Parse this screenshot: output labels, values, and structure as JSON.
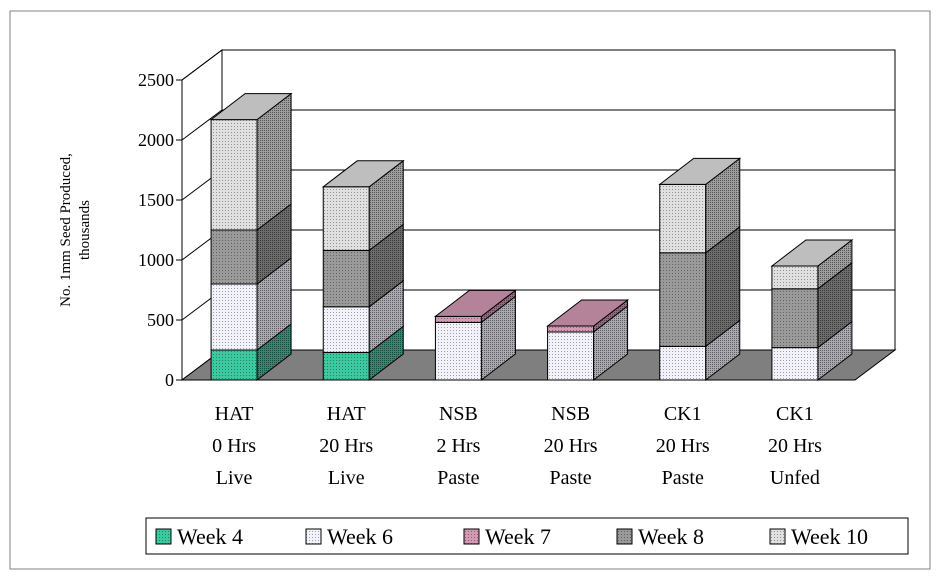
{
  "chart_data": {
    "type": "bar",
    "stacked": true,
    "three_d": true,
    "ylabel": "No. 1mm Seed Produced, thousands",
    "ylabel_lines": [
      "No. 1mm Seed Produced,",
      "thousands"
    ],
    "ylim": [
      0,
      2500
    ],
    "yticks": [
      0,
      500,
      1000,
      1500,
      2000,
      2500
    ],
    "ytick_labels": [
      "0",
      "500",
      "1000",
      "1500",
      "2000",
      "2500"
    ],
    "grid": true,
    "legend_position": "bottom",
    "categories": [
      "HAT 0 Hrs Live",
      "HAT 20 Hrs Live",
      "NSB 2 Hrs Paste",
      "NSB 20 Hrs Paste",
      "CK1 20 Hrs Paste",
      "CK1 20 Hrs Unfed"
    ],
    "category_lines": [
      [
        "HAT",
        "0 Hrs",
        "Live"
      ],
      [
        "HAT",
        "20 Hrs",
        "Live"
      ],
      [
        "NSB",
        "2 Hrs",
        "Paste"
      ],
      [
        "NSB",
        "20 Hrs",
        "Paste"
      ],
      [
        "CK1",
        "20 Hrs",
        "Paste"
      ],
      [
        "CK1",
        "20 Hrs",
        "Unfed"
      ]
    ],
    "series": [
      {
        "name": "Week 4",
        "color": "#3cc9a0",
        "values": [
          250,
          230,
          0,
          0,
          0,
          0
        ]
      },
      {
        "name": "Week 6",
        "color": "#f2f2fa",
        "values": [
          550,
          380,
          480,
          400,
          280,
          270
        ]
      },
      {
        "name": "Week 7",
        "color": "#d49ab4",
        "values": [
          0,
          0,
          50,
          50,
          0,
          0
        ]
      },
      {
        "name": "Week 8",
        "color": "#9a9a9a",
        "values": [
          450,
          470,
          0,
          0,
          780,
          490
        ]
      },
      {
        "name": "Week 10",
        "color": "#e0e0e0",
        "values": [
          920,
          530,
          0,
          0,
          570,
          190
        ]
      }
    ]
  }
}
